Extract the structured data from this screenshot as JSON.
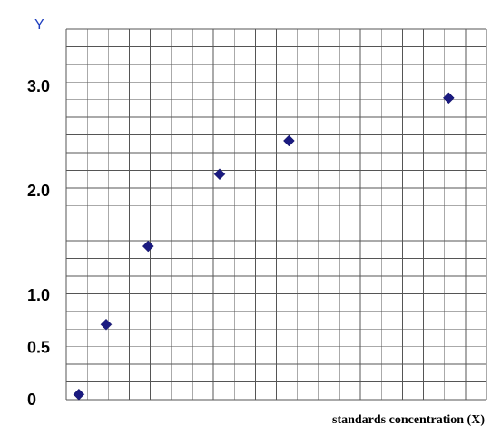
{
  "chart_data": {
    "type": "scatter",
    "xlabel": "standards concentration (X)",
    "ylabel": "Y",
    "y_ticks": [
      "0",
      "0.5",
      "1.0",
      "2.0",
      "3.0"
    ],
    "y_tick_values": [
      0,
      0.5,
      1.0,
      2.0,
      3.0
    ],
    "ylim": [
      0,
      3.55
    ],
    "xlim": [
      0,
      20
    ],
    "grid": true,
    "points": [
      {
        "x": 0.6,
        "y": 0.05
      },
      {
        "x": 1.9,
        "y": 0.72
      },
      {
        "x": 3.9,
        "y": 1.47
      },
      {
        "x": 7.3,
        "y": 2.16
      },
      {
        "x": 10.6,
        "y": 2.48
      },
      {
        "x": 18.2,
        "y": 2.89
      }
    ],
    "colors": {
      "marker": "#1a1a80",
      "ylabel": "#1f3fbf",
      "grid": "#555555"
    }
  }
}
